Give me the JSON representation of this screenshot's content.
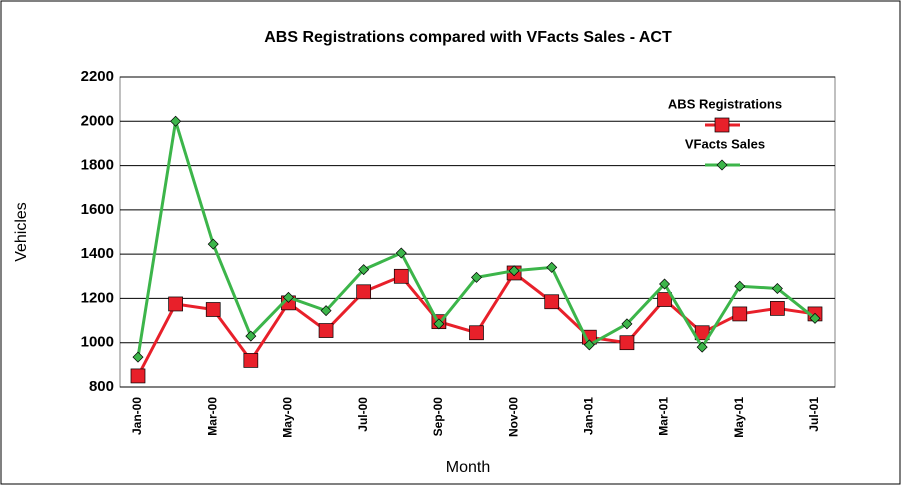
{
  "chart_data": {
    "type": "line",
    "title": "ABS Registrations compared with VFacts Sales - ACT",
    "x_label": "Month",
    "y_label": "Vehicles",
    "categories": [
      "Jan-00",
      null,
      "Mar-00",
      null,
      "May-00",
      null,
      "Jul-00",
      null,
      "Sep-00",
      null,
      "Nov-00",
      null,
      "Jan-01",
      null,
      "Mar-01",
      null,
      "May-01",
      null,
      "Jul-01"
    ],
    "series": [
      {
        "name": "ABS Registrations",
        "color": "#e8202a",
        "marker": "square",
        "values": [
          850,
          1175,
          1150,
          920,
          1180,
          1055,
          1230,
          1300,
          1095,
          1045,
          1315,
          1185,
          1025,
          1000,
          1195,
          1045,
          1130,
          1155,
          1130
        ]
      },
      {
        "name": "VFacts Sales",
        "color": "#3cb54a",
        "marker": "diamond",
        "values": [
          935,
          2000,
          1445,
          1030,
          1205,
          1145,
          1330,
          1405,
          1085,
          1295,
          1325,
          1340,
          990,
          1085,
          1265,
          980,
          1255,
          1245,
          1110
        ]
      }
    ],
    "ylim": [
      800,
      2200
    ],
    "yticks": [
      800,
      1000,
      1200,
      1400,
      1600,
      1800,
      2000,
      2200
    ],
    "grid": true,
    "legend": "upper right"
  }
}
